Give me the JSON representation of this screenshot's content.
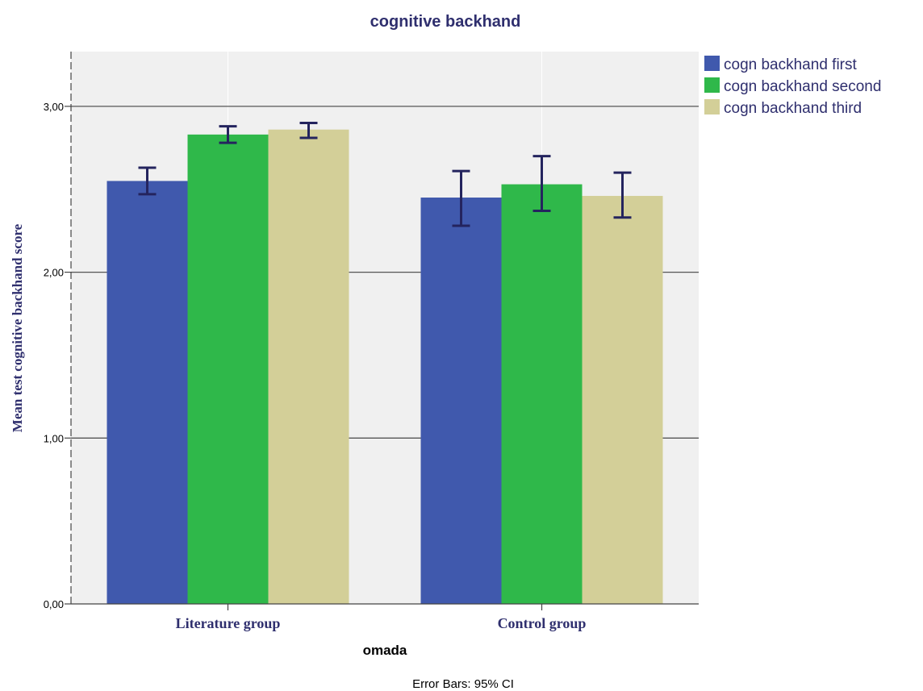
{
  "chart_data": {
    "type": "bar",
    "title": "cognitive backhand",
    "xlabel": "omada",
    "ylabel": "Mean test cognitive backhand score",
    "categories": [
      "Literature group",
      "Control group"
    ],
    "series": [
      {
        "name": "cogn backhand first",
        "color": "#4059ad",
        "values": [
          2.55,
          2.45
        ],
        "ci_low": [
          2.47,
          2.28
        ],
        "ci_high": [
          2.63,
          2.61
        ]
      },
      {
        "name": "cogn backhand second",
        "color": "#2fb84a",
        "values": [
          2.83,
          2.53
        ],
        "ci_low": [
          2.78,
          2.37
        ],
        "ci_high": [
          2.88,
          2.7
        ]
      },
      {
        "name": "cogn backhand third",
        "color": "#d3cf98",
        "values": [
          2.86,
          2.46
        ],
        "ci_low": [
          2.81,
          2.33
        ],
        "ci_high": [
          2.9,
          2.6
        ]
      }
    ],
    "ylim": [
      0,
      3.33
    ],
    "yticks": [
      0,
      1,
      2,
      3
    ],
    "ytick_labels": [
      "0,00",
      "1,00",
      "2,00",
      "3,00"
    ],
    "grid": true,
    "legend_position": "top-right",
    "footnote": "Error Bars: 95% CI",
    "error_bar_color": "#24245e",
    "plot_background": "#f0f0f0"
  }
}
